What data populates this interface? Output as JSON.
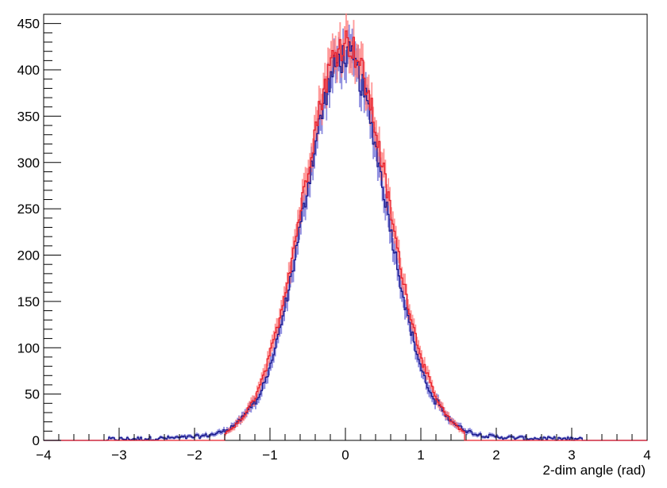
{
  "chart_data": {
    "type": "histogram",
    "title": "",
    "xlabel": "2-dim angle (rad)",
    "ylabel": "",
    "xlim": [
      -4,
      4
    ],
    "ylim": [
      0,
      460
    ],
    "x_ticks": [
      "−4",
      "−3",
      "−2",
      "−1",
      "0",
      "1",
      "2",
      "3",
      "4"
    ],
    "y_ticks": [
      "0",
      "50",
      "100",
      "150",
      "200",
      "250",
      "300",
      "350",
      "400",
      "450"
    ],
    "grid": false,
    "legend": "none",
    "series": [
      {
        "color": "#1a1a8c",
        "band_color": "#6b6bd6",
        "range": [
          -3.15,
          3.15
        ],
        "gauss": {
          "mean": 0.0,
          "sigma": 0.55,
          "peak": 415
        },
        "tail": {
          "level": 8,
          "scale": 1.2,
          "cutoff": 3.15
        },
        "noise": 0.04,
        "bin_width": 0.02
      },
      {
        "color": "#e8202a",
        "band_color": "#ff7a7a",
        "range": [
          -1.59,
          1.59
        ],
        "gauss": {
          "mean": 0.0,
          "sigma": 0.57,
          "peak": 430
        },
        "tail": {
          "level": 0,
          "scale": 1.0,
          "cutoff": 1.59
        },
        "noise": 0.04,
        "bin_width": 0.02
      }
    ]
  }
}
